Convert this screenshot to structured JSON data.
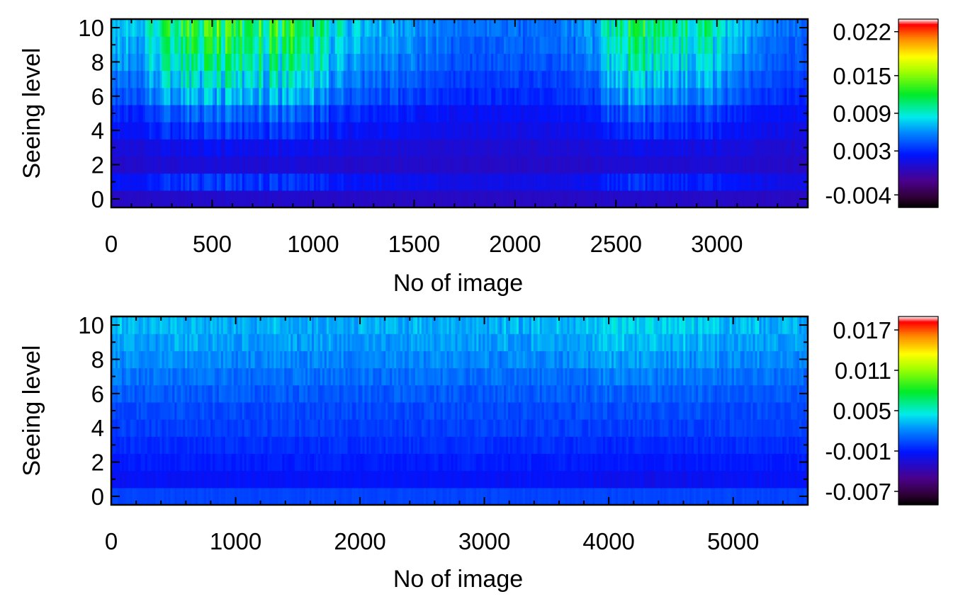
{
  "chart_data": [
    {
      "type": "heatmap",
      "title": "",
      "xlabel": "No of image",
      "ylabel": "Seeing level",
      "xlim": [
        0,
        3450
      ],
      "ylim": [
        -0.5,
        10.5
      ],
      "x_ticks": [
        0,
        500,
        1000,
        1500,
        2000,
        2500,
        3000
      ],
      "x_tick_labels": [
        "0",
        "500",
        "1000",
        "1500",
        "2000",
        "2500",
        "3000"
      ],
      "y_ticks": [
        0,
        2,
        4,
        6,
        8,
        10
      ],
      "y_tick_labels": [
        "0",
        "2",
        "4",
        "6",
        "8",
        "10"
      ],
      "colormap": "rainbow",
      "colorbar": {
        "min": -0.006,
        "max": 0.024,
        "ticks": [
          0.022,
          0.015,
          0.009,
          0.003,
          -0.004
        ],
        "tick_labels": [
          "0.022",
          "0.015",
          "0.009",
          "0.003",
          "-0.004"
        ]
      },
      "rows": [
        0,
        1,
        2,
        3,
        4,
        5,
        6,
        7,
        8,
        9,
        10
      ],
      "row_base": [
        0.0005,
        0.0035,
        0.0009,
        0.0018,
        0.0035,
        0.0048,
        0.0072,
        0.0087,
        0.0102,
        0.0112,
        0.0122
      ],
      "activity_profile": {
        "x": [
          0,
          150,
          250,
          500,
          800,
          1000,
          1150,
          1400,
          1700,
          2200,
          2400,
          2470,
          2600,
          2850,
          3000,
          3100,
          3300,
          3450
        ],
        "level": [
          0.35,
          0.4,
          0.75,
          1.0,
          0.95,
          0.9,
          0.45,
          0.3,
          0.1,
          0.1,
          0.25,
          0.8,
          0.85,
          0.8,
          0.55,
          0.35,
          0.15,
          0.1
        ]
      }
    },
    {
      "type": "heatmap",
      "title": "",
      "xlabel": "No of image",
      "ylabel": "Seeing level",
      "xlim": [
        0,
        5600
      ],
      "ylim": [
        -0.5,
        10.5
      ],
      "x_ticks": [
        0,
        1000,
        2000,
        3000,
        4000,
        5000
      ],
      "x_tick_labels": [
        "0",
        "1000",
        "2000",
        "3000",
        "4000",
        "5000"
      ],
      "y_ticks": [
        0,
        2,
        4,
        6,
        8,
        10
      ],
      "y_tick_labels": [
        "0",
        "2",
        "4",
        "6",
        "8",
        "10"
      ],
      "colormap": "rainbow",
      "colorbar": {
        "min": -0.009,
        "max": 0.019,
        "ticks": [
          0.017,
          0.011,
          0.005,
          -0.001,
          -0.007
        ],
        "tick_labels": [
          "0.017",
          "0.011",
          "0.005",
          "-0.001",
          "-0.007"
        ]
      },
      "rows": [
        0,
        1,
        2,
        3,
        4,
        5,
        6,
        7,
        8,
        9,
        10
      ],
      "row_base": [
        0.0002,
        -0.0018,
        -0.0012,
        -0.0006,
        0.0,
        0.0004,
        0.001,
        0.0018,
        0.0026,
        0.0034,
        0.004
      ],
      "activity_profile": {
        "x": [
          0,
          500,
          1000,
          2000,
          3000,
          3700,
          3900,
          4100,
          4500,
          4800,
          5000,
          5600
        ],
        "level": [
          0.55,
          0.6,
          0.45,
          0.35,
          0.4,
          0.55,
          0.8,
          1.0,
          0.95,
          0.8,
          0.55,
          0.45
        ]
      }
    }
  ]
}
